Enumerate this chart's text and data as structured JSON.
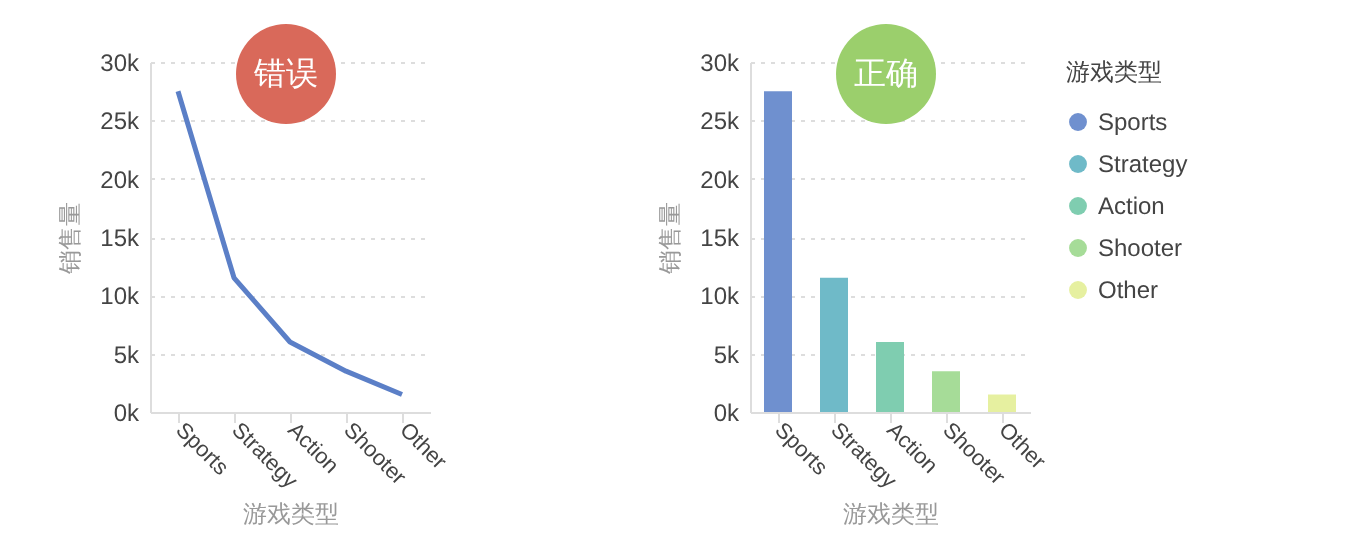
{
  "chart_data": [
    {
      "type": "line",
      "categories": [
        "Sports",
        "Strategy",
        "Action",
        "Shooter",
        "Other"
      ],
      "xlabel": "游戏类型",
      "ylabel": "销售量",
      "series": [
        {
          "color": "#5b7fc7",
          "values": [
            27500,
            11500,
            6000,
            3500,
            1500
          ]
        }
      ],
      "ylim": [
        0,
        30000
      ],
      "yticks": [
        {
          "value": 0,
          "label": "0k"
        },
        {
          "value": 5000,
          "label": "5k"
        },
        {
          "value": 10000,
          "label": "10k"
        },
        {
          "value": 15000,
          "label": "15k"
        },
        {
          "value": 20000,
          "label": "20k"
        },
        {
          "value": 25000,
          "label": "25k"
        },
        {
          "value": 30000,
          "label": "30k"
        }
      ],
      "grid": "y",
      "annotations": [
        "错误"
      ]
    },
    {
      "type": "bar",
      "categories": [
        "Sports",
        "Strategy",
        "Action",
        "Shooter",
        "Other"
      ],
      "xlabel": "游戏类型",
      "ylabel": "销售量",
      "legend_title": "游戏类型",
      "stacked": true,
      "series": [
        {
          "name": "Sports",
          "color": "#6f90cf",
          "values": [
            27500,
            null,
            null,
            null,
            null
          ]
        },
        {
          "name": "Strategy",
          "color": "#6fbac8",
          "values": [
            null,
            11500,
            null,
            null,
            null
          ]
        },
        {
          "name": "Action",
          "color": "#7fcdb0",
          "values": [
            null,
            null,
            6000,
            null,
            null
          ]
        },
        {
          "name": "Shooter",
          "color": "#a6dc98",
          "values": [
            null,
            null,
            null,
            3500,
            null
          ]
        },
        {
          "name": "Other",
          "color": "#e6f0a0",
          "values": [
            null,
            null,
            null,
            null,
            1500
          ]
        }
      ],
      "ylim": [
        0,
        30000
      ],
      "yticks": [
        {
          "value": 0,
          "label": "0k"
        },
        {
          "value": 5000,
          "label": "5k"
        },
        {
          "value": 10000,
          "label": "10k"
        },
        {
          "value": 15000,
          "label": "15k"
        },
        {
          "value": 20000,
          "label": "20k"
        },
        {
          "value": 25000,
          "label": "25k"
        },
        {
          "value": 30000,
          "label": "30k"
        }
      ],
      "grid": "y",
      "legend": "right",
      "annotations": [
        "正确"
      ]
    }
  ]
}
